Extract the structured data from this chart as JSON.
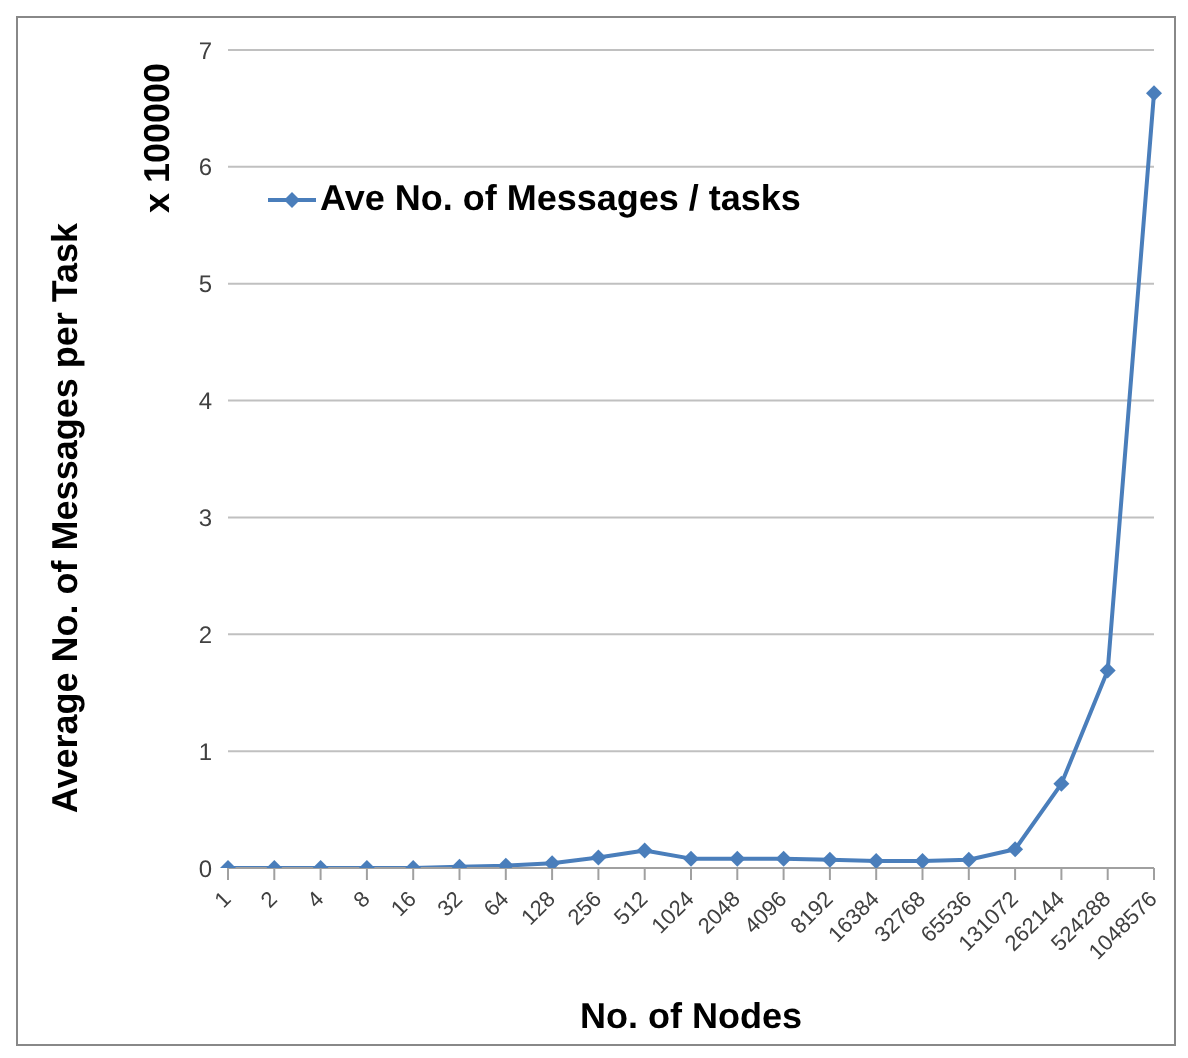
{
  "chart_data": {
    "type": "line",
    "xlabel": "No. of Nodes",
    "ylabel": "Average No. of Messages per Task",
    "annotations": [
      "x 100000"
    ],
    "categories": [
      "1",
      "2",
      "4",
      "8",
      "16",
      "32",
      "64",
      "128",
      "256",
      "512",
      "1024",
      "2048",
      "4096",
      "8192",
      "16384",
      "32768",
      "65536",
      "131072",
      "262144",
      "524288",
      "1048576"
    ],
    "series": [
      {
        "name": "Ave No. of Messages / tasks",
        "color": "#4a7ebb",
        "values": [
          0,
          0,
          0,
          0,
          0,
          0.01,
          0.02,
          0.04,
          0.09,
          0.15,
          0.08,
          0.08,
          0.08,
          0.07,
          0.06,
          0.06,
          0.07,
          0.16,
          0.72,
          1.69,
          6.63
        ]
      }
    ],
    "ylim": [
      0,
      7
    ],
    "yticks": [
      0,
      1,
      2,
      3,
      4,
      5,
      6,
      7
    ],
    "grid": "y",
    "legend": "top left",
    "marker": "diamond",
    "line_style": "solid"
  }
}
